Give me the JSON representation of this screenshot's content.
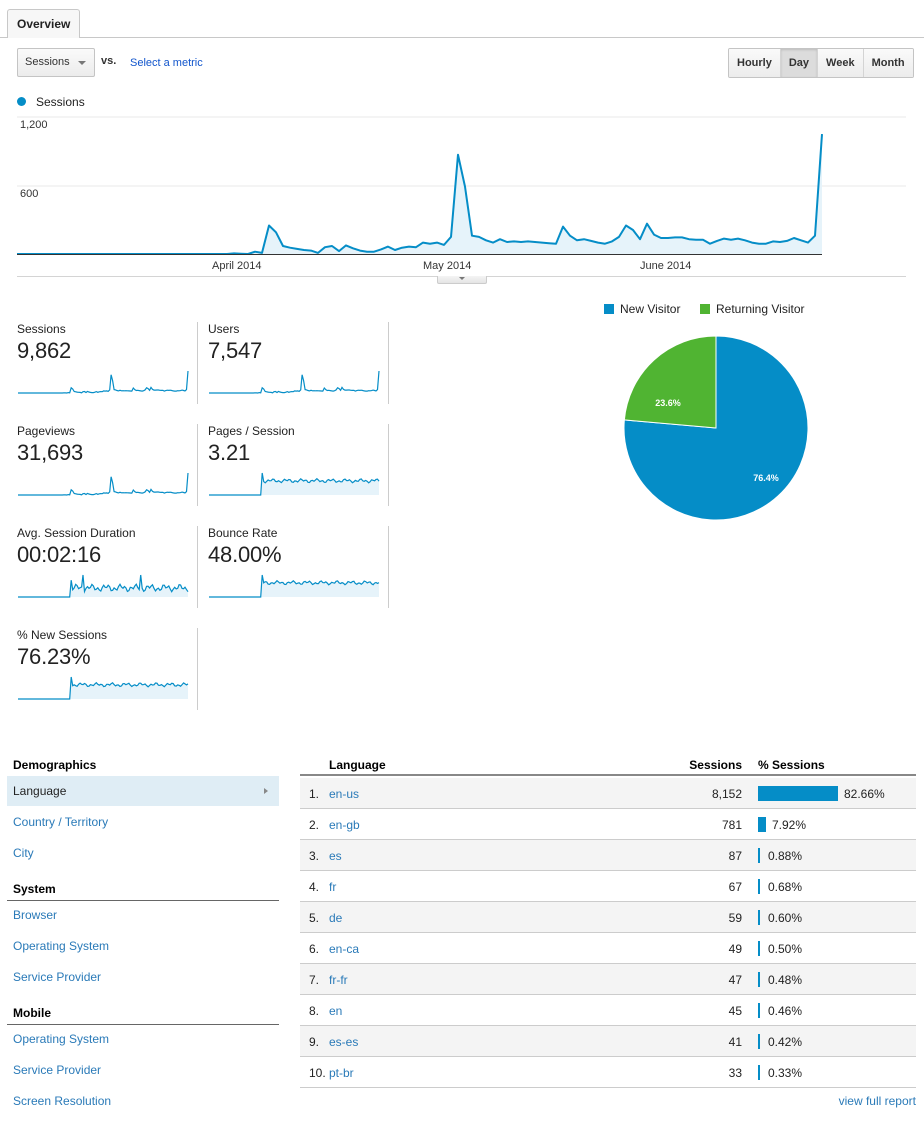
{
  "tabs": [
    {
      "label": "Overview",
      "active": true
    }
  ],
  "controls": {
    "metric_select": "Sessions",
    "vs_label": "vs.",
    "select_metric_link": "Select a metric",
    "granularity": [
      {
        "label": "Hourly",
        "active": false
      },
      {
        "label": "Day",
        "active": true
      },
      {
        "label": "Week",
        "active": false
      },
      {
        "label": "Month",
        "active": false
      }
    ]
  },
  "colors": {
    "series_blue": "#058dc7",
    "returning_green": "#50b432",
    "link_blue": "#2a7ab8",
    "fill_blue": "#e6f3fa"
  },
  "chart_data": [
    {
      "type": "area",
      "title": "Sessions",
      "legend": [
        "Sessions"
      ],
      "y_ticks": [
        "1,200",
        "600"
      ],
      "ylim": [
        0,
        1200
      ],
      "x_tick_labels": [
        "April 2014",
        "May 2014",
        "June 2014"
      ],
      "xlabel": "",
      "ylabel": "",
      "grid": true,
      "series": [
        {
          "name": "Sessions",
          "values": [
            0,
            0,
            0,
            0,
            0,
            0,
            0,
            0,
            0,
            0,
            0,
            0,
            0,
            0,
            0,
            0,
            0,
            0,
            0,
            0,
            0,
            0,
            0,
            0,
            0,
            0,
            0,
            0,
            0,
            0,
            0,
            5,
            3,
            0,
            20,
            10,
            250,
            190,
            70,
            55,
            45,
            35,
            30,
            10,
            60,
            70,
            25,
            75,
            50,
            30,
            20,
            20,
            40,
            65,
            35,
            55,
            65,
            60,
            100,
            90,
            100,
            80,
            150,
            870,
            590,
            160,
            150,
            120,
            100,
            130,
            105,
            110,
            105,
            110,
            105,
            100,
            95,
            90,
            240,
            160,
            120,
            130,
            115,
            100,
            90,
            110,
            150,
            250,
            210,
            130,
            265,
            170,
            140,
            140,
            145,
            145,
            130,
            125,
            125,
            90,
            115,
            135,
            125,
            135,
            120,
            100,
            90,
            90,
            110,
            105,
            115,
            140,
            120,
            100,
            160,
            1050
          ]
        }
      ]
    },
    {
      "type": "pie",
      "legend": [
        "New Visitor",
        "Returning Visitor"
      ],
      "categories": [
        "New Visitor",
        "Returning Visitor"
      ],
      "values": [
        76.4,
        23.6
      ],
      "labels": [
        "76.4%",
        "23.6%"
      ],
      "legend_position": "top"
    }
  ],
  "scorecards": [
    {
      "label": "Sessions",
      "value": "9,862"
    },
    {
      "label": "Users",
      "value": "7,547"
    },
    {
      "label": "Pageviews",
      "value": "31,693"
    },
    {
      "label": "Pages / Session",
      "value": "3.21"
    },
    {
      "label": "Avg. Session Duration",
      "value": "00:02:16"
    },
    {
      "label": "Bounce Rate",
      "value": "48.00%"
    },
    {
      "label": "% New Sessions",
      "value": "76.23%"
    }
  ],
  "pie": {
    "legend": [
      {
        "label": "New Visitor",
        "color": "#058dc7"
      },
      {
        "label": "Returning Visitor",
        "color": "#50b432"
      }
    ],
    "slices": [
      {
        "label": "76.4%",
        "value": 76.4
      },
      {
        "label": "23.6%",
        "value": 23.6
      }
    ]
  },
  "nav": {
    "sections": [
      {
        "header": "Demographics",
        "items": [
          {
            "label": "Language",
            "active": true
          },
          {
            "label": "Country / Territory",
            "active": false
          },
          {
            "label": "City",
            "active": false
          }
        ]
      },
      {
        "header": "System",
        "items": [
          {
            "label": "Browser",
            "active": false
          },
          {
            "label": "Operating System",
            "active": false
          },
          {
            "label": "Service Provider",
            "active": false
          }
        ]
      },
      {
        "header": "Mobile",
        "items": [
          {
            "label": "Operating System",
            "active": false
          },
          {
            "label": "Service Provider",
            "active": false
          },
          {
            "label": "Screen Resolution",
            "active": false
          }
        ]
      }
    ]
  },
  "table": {
    "headers": {
      "dimension": "Language",
      "sessions": "Sessions",
      "pct": "% Sessions"
    },
    "rows": [
      {
        "rank": "1.",
        "language": "en-us",
        "sessions": "8,152",
        "pct": "82.66%",
        "pct_value": 82.66
      },
      {
        "rank": "2.",
        "language": "en-gb",
        "sessions": "781",
        "pct": "7.92%",
        "pct_value": 7.92
      },
      {
        "rank": "3.",
        "language": "es",
        "sessions": "87",
        "pct": "0.88%",
        "pct_value": 0.88
      },
      {
        "rank": "4.",
        "language": "fr",
        "sessions": "67",
        "pct": "0.68%",
        "pct_value": 0.68
      },
      {
        "rank": "5.",
        "language": "de",
        "sessions": "59",
        "pct": "0.60%",
        "pct_value": 0.6
      },
      {
        "rank": "6.",
        "language": "en-ca",
        "sessions": "49",
        "pct": "0.50%",
        "pct_value": 0.5
      },
      {
        "rank": "7.",
        "language": "fr-fr",
        "sessions": "47",
        "pct": "0.48%",
        "pct_value": 0.48
      },
      {
        "rank": "8.",
        "language": "en",
        "sessions": "45",
        "pct": "0.46%",
        "pct_value": 0.46
      },
      {
        "rank": "9.",
        "language": "es-es",
        "sessions": "41",
        "pct": "0.42%",
        "pct_value": 0.42
      },
      {
        "rank": "10.",
        "language": "pt-br",
        "sessions": "33",
        "pct": "0.33%",
        "pct_value": 0.33
      }
    ],
    "view_full_report": "view full report"
  }
}
